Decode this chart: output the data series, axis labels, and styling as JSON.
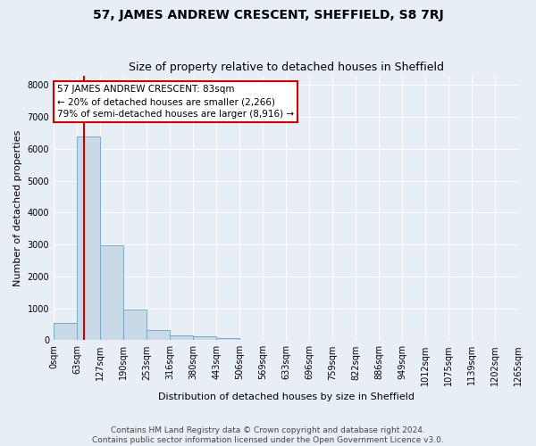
{
  "title": "57, JAMES ANDREW CRESCENT, SHEFFIELD, S8 7RJ",
  "subtitle": "Size of property relative to detached houses in Sheffield",
  "xlabel": "Distribution of detached houses by size in Sheffield",
  "ylabel": "Number of detached properties",
  "footer_line1": "Contains HM Land Registry data © Crown copyright and database right 2024.",
  "footer_line2": "Contains public sector information licensed under the Open Government Licence v3.0.",
  "bar_edges": [
    0,
    63,
    127,
    190,
    253,
    316,
    380,
    443,
    506,
    569,
    633,
    696,
    759,
    822,
    886,
    949,
    1012,
    1075,
    1139,
    1202,
    1265
  ],
  "bar_heights": [
    550,
    6380,
    2960,
    950,
    330,
    150,
    110,
    70,
    0,
    0,
    0,
    0,
    0,
    0,
    0,
    0,
    0,
    0,
    0,
    0
  ],
  "bar_color": "#c9d9e8",
  "bar_edge_color": "#7aaac8",
  "property_size": 83,
  "vline_color": "#cc0000",
  "annotation_line1": "57 JAMES ANDREW CRESCENT: 83sqm",
  "annotation_line2": "← 20% of detached houses are smaller (2,266)",
  "annotation_line3": "79% of semi-detached houses are larger (8,916) →",
  "annotation_box_color": "#cc0000",
  "ylim_max": 8300,
  "yticks": [
    0,
    1000,
    2000,
    3000,
    4000,
    5000,
    6000,
    7000,
    8000
  ],
  "background_color": "#e8eef5",
  "grid_color": "#ffffff",
  "title_fontsize": 10,
  "subtitle_fontsize": 9,
  "axis_label_fontsize": 8,
  "tick_label_fontsize": 7,
  "annotation_fontsize": 7.5,
  "footer_fontsize": 6.5
}
